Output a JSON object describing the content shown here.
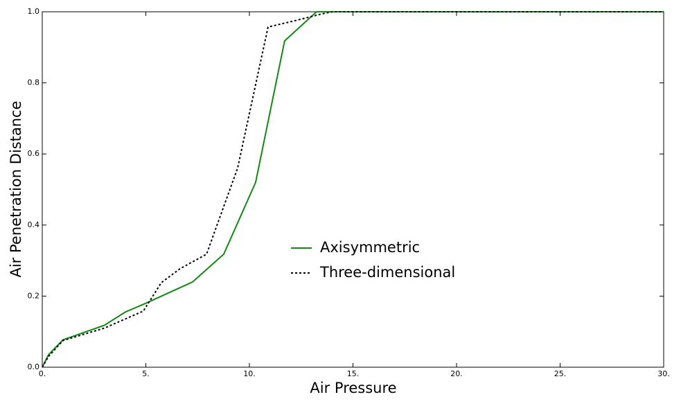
{
  "chart_data": {
    "type": "line",
    "xlabel": "Air Pressure",
    "ylabel": "Air Penetration Distance",
    "xlim": [
      0,
      30
    ],
    "ylim": [
      0,
      1
    ],
    "xticks": [
      {
        "value": 0,
        "label": "0."
      },
      {
        "value": 5,
        "label": "5."
      },
      {
        "value": 10,
        "label": "10."
      },
      {
        "value": 15,
        "label": "15."
      },
      {
        "value": 20,
        "label": "20."
      },
      {
        "value": 25,
        "label": "25."
      },
      {
        "value": 30,
        "label": "30."
      }
    ],
    "yticks": [
      {
        "value": 0,
        "label": "0.0"
      },
      0.2,
      0.4,
      0.6,
      0.8,
      {
        "value": 1,
        "label": "1.0"
      }
    ],
    "legend": "center",
    "series": [
      {
        "name": "Axisymmetric",
        "color": "#118811",
        "linestyle": "solid",
        "x": [
          0,
          0.3,
          1,
          3,
          4,
          5,
          7.26,
          8.76,
          10.3,
          11.7,
          13.24,
          30
        ],
        "values": [
          0,
          0.035,
          0.077,
          0.118,
          0.155,
          0.18,
          0.24,
          0.318,
          0.52,
          0.918,
          1,
          1
        ]
      },
      {
        "name": "Three-dimensional",
        "color": "#000000",
        "linestyle": "dotted",
        "x": [
          0,
          0.3,
          1,
          3,
          4.88,
          5.75,
          6.65,
          7.93,
          9.43,
          10.9,
          12.2,
          13.5,
          14,
          30
        ],
        "values": [
          0,
          0.03,
          0.075,
          0.11,
          0.158,
          0.238,
          0.277,
          0.318,
          0.56,
          0.957,
          0.975,
          0.994,
          1,
          1
        ]
      }
    ]
  }
}
